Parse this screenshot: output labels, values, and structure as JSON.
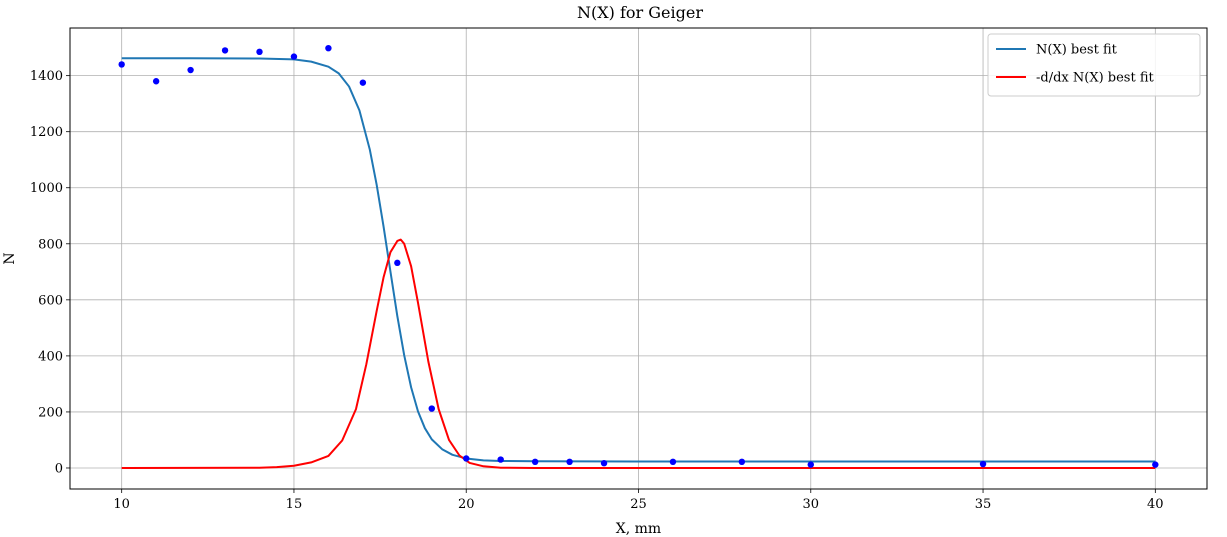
{
  "chart_data": {
    "type": "line",
    "title": "N(X) for Geiger",
    "xlabel": "X, mm",
    "ylabel": "N",
    "xlim": [
      8.5,
      41.5
    ],
    "ylim": [
      -75,
      1570
    ],
    "xticks": [
      10,
      15,
      20,
      25,
      30,
      35,
      40
    ],
    "yticks": [
      0,
      200,
      400,
      600,
      800,
      1000,
      1200,
      1400
    ],
    "grid": true,
    "legend_position": "top-right",
    "points": {
      "color": "#0000ff",
      "x": [
        10,
        11,
        12,
        13,
        14,
        15,
        16,
        17,
        18,
        19,
        20,
        21,
        22,
        23,
        24,
        26,
        28,
        30,
        35,
        40
      ],
      "y": [
        1440,
        1380,
        1420,
        1490,
        1485,
        1468,
        1498,
        1375,
        732,
        212,
        34,
        30,
        22,
        22,
        17,
        22,
        22,
        12,
        14,
        12
      ]
    },
    "series": [
      {
        "name": "N(X) best fit",
        "color": "#1f77b4",
        "x": [
          10,
          12,
          14,
          15,
          15.5,
          16,
          16.3,
          16.6,
          16.9,
          17.2,
          17.4,
          17.6,
          17.8,
          18.0,
          18.2,
          18.4,
          18.6,
          18.8,
          19.0,
          19.3,
          19.6,
          20.0,
          20.5,
          21,
          22,
          25,
          30,
          35,
          40
        ],
        "y": [
          1462,
          1462,
          1461,
          1458,
          1450,
          1432,
          1408,
          1361,
          1276,
          1137,
          1011,
          862,
          701,
          542,
          402,
          288,
          202,
          142,
          102,
          67,
          47,
          34,
          27,
          25,
          24,
          23,
          23,
          23,
          23
        ]
      },
      {
        "name": "-d/dx N(X) best fit",
        "color": "#ff0000",
        "x": [
          10,
          14,
          14.5,
          15,
          15.5,
          16,
          16.4,
          16.8,
          17.1,
          17.4,
          17.6,
          17.8,
          18.0,
          18.1,
          18.2,
          18.4,
          18.6,
          18.9,
          19.2,
          19.5,
          19.8,
          20.1,
          20.5,
          21,
          22,
          25,
          30,
          35,
          40
        ],
        "y": [
          0,
          1,
          3,
          8,
          20,
          43,
          98,
          210,
          370,
          560,
          680,
          770,
          810,
          815,
          800,
          720,
          590,
          380,
          210,
          100,
          45,
          18,
          6,
          1,
          0,
          0,
          0,
          0,
          0
        ]
      }
    ]
  }
}
